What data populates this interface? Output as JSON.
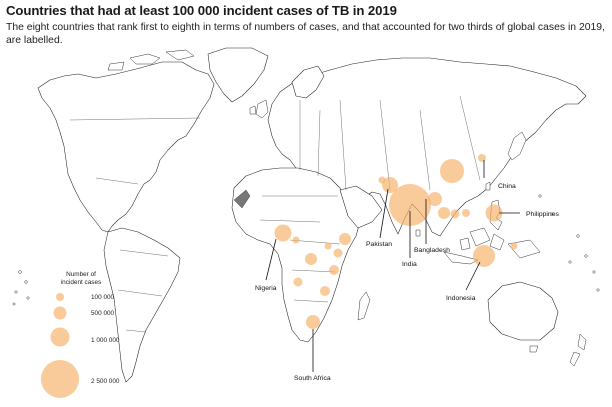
{
  "title": "Countries that had at least 100 000 incident cases of TB in 2019",
  "subtitle": "The eight countries that rank first to eighth in terms of numbers of cases, and that accounted for two thirds of global cases in 2019, are labelled.",
  "colors": {
    "bubble": "#f6b36a",
    "land_fill": "#ffffff",
    "outline": "#222222",
    "disputed": "#777777"
  },
  "legend": {
    "title_line1": "Number of",
    "title_line2": "incident cases",
    "entries": [
      {
        "label": "100 000",
        "value": 100000
      },
      {
        "label": "500 000",
        "value": 500000
      },
      {
        "label": "1 000 000",
        "value": 1000000
      },
      {
        "label": "2 500 000",
        "value": 2500000
      }
    ]
  },
  "labels": {
    "china": "China",
    "philippines": "Philippines",
    "pakistan": "Pakistan",
    "bangladesh": "Bangladesh",
    "india": "India",
    "indonesia": "Indonesia",
    "nigeria": "Nigeria",
    "south_africa": "South Africa"
  }
}
